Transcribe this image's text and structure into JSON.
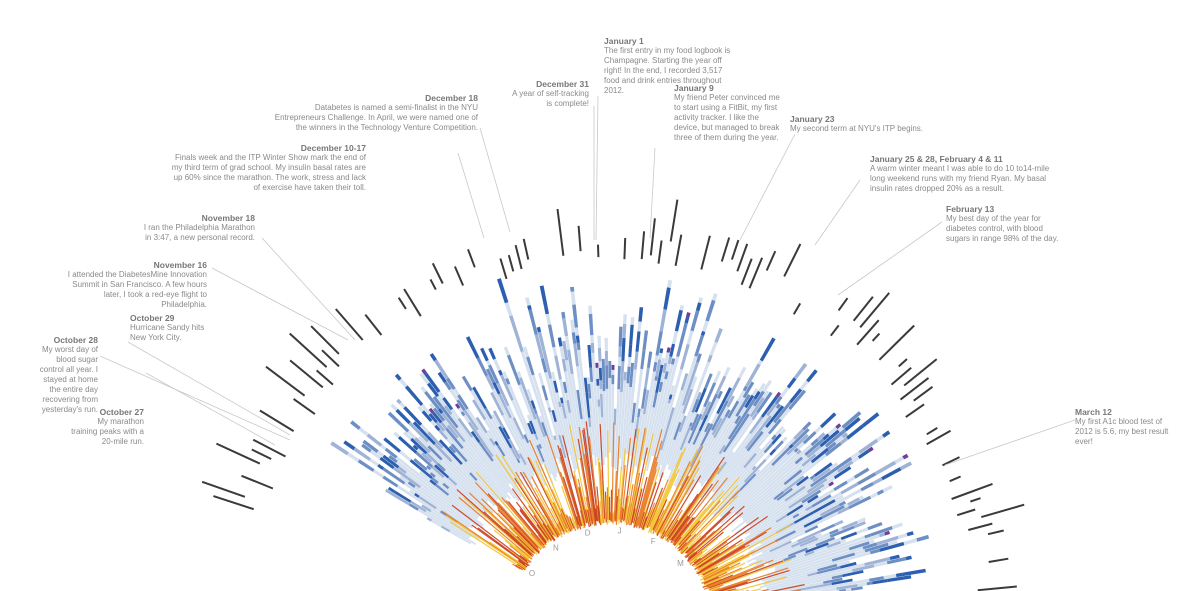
{
  "palette": {
    "glucose_in_range": "#d6e1ef",
    "glucose_mid": "#9fb3d6",
    "glucose_high": "#6e8fc4",
    "glucose_very_high": "#2c5fb0",
    "glucose_extreme": "#6f3f98",
    "food_warm": "#f3c42f",
    "food_hot": "#e8781e",
    "food_deep": "#c93a17",
    "spike": "#3a3a3a",
    "leader": "#c8c8c8",
    "month_label": "#9a9a9a"
  },
  "chart_data": {
    "type": "radial",
    "period": "2012",
    "month_labels": [
      "O",
      "N",
      "D",
      "J",
      "F",
      "M"
    ],
    "annotations": [
      {
        "id": "jan1",
        "date": "January 1",
        "text": "The first entry in my food logbook is Champagne. Starting the year off right! In the end, I recorded 3,517 food and drink entries throughout 2012."
      },
      {
        "id": "dec31",
        "date": "December 31",
        "text": "A year of self-tracking is complete!"
      },
      {
        "id": "jan9",
        "date": "January 9",
        "text": "My friend Peter convinced me to start using a FitBit, my first activity tracker. I like the device, but managed to break three of them during the year."
      },
      {
        "id": "dec18",
        "date": "December 18",
        "text": "Databetes is named a semi-finalist in the NYU Entrepreneurs Challenge. In April, we were named one of the winners in the Technology Venture Competition."
      },
      {
        "id": "jan23",
        "date": "January 23",
        "text": "My second term at NYU's ITP begins."
      },
      {
        "id": "dec10",
        "date": "December 10-17",
        "text": "Finals week and the ITP Winter Show mark the end of my third term of grad school. My insulin basal rates are up 60% since the marathon. The work, stress and lack of exercise have taken their toll."
      },
      {
        "id": "jan25",
        "date": "January 25 & 28, February 4 & 11",
        "text": "A warm winter meant I was able to do 10 to14-mile long weekend runs with my friend Ryan. My basal insulin rates dropped 20% as a result."
      },
      {
        "id": "feb13",
        "date": "February 13",
        "text": "My best day of the year for diabetes control, with blood sugars in range 98% of the day."
      },
      {
        "id": "nov18",
        "date": "November 18",
        "text": "I ran the Philadelphia Marathon in 3:47, a new personal record."
      },
      {
        "id": "nov16",
        "date": "November 16",
        "text": "I attended the DiabetesMine Innovation Summit in San Francisco. A few hours later, I took a red-eye flight to Philadelphia."
      },
      {
        "id": "oct29",
        "date": "October 29",
        "text": "Hurricane Sandy hits New York City."
      },
      {
        "id": "oct28",
        "date": "October 28",
        "text": "My worst day of blood sugar control all year. I stayed at home the entire day recovering from yesterday's run."
      },
      {
        "id": "oct27",
        "date": "October 27",
        "text": "My marathon training peaks with a 20-mile run."
      },
      {
        "id": "mar12",
        "date": "March 12",
        "text": "My first A1c blood test of 2012 is 5.6, my best result ever!"
      }
    ]
  }
}
